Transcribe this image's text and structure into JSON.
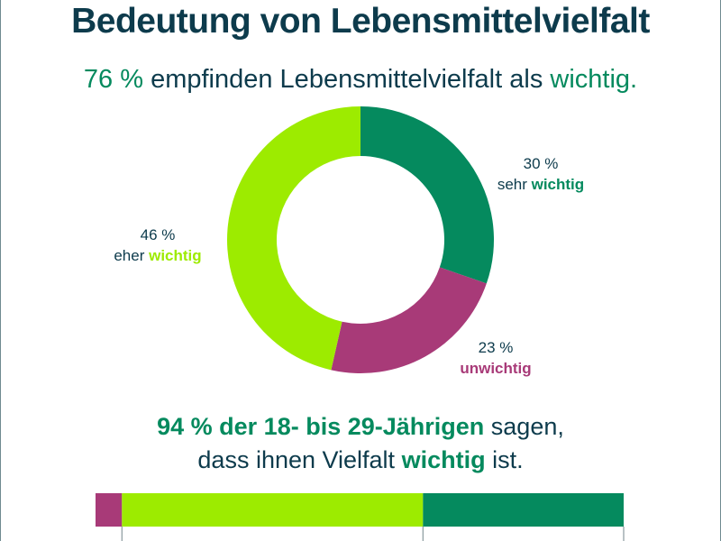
{
  "title": "Bedeutung von Lebensmittelvielfalt",
  "subtitle": {
    "pct": "76 %",
    "text": " empfinden Lebensmittelvielfalt als ",
    "highlight": "wichtig."
  },
  "chart_data": [
    {
      "type": "pie",
      "donut": true,
      "start": "top",
      "direction": "clockwise",
      "slices": [
        {
          "value": 30,
          "pct_label": "30 %",
          "prefix": "sehr ",
          "word": "wichtig",
          "color": "#058a5e",
          "word_color": "#058a5e"
        },
        {
          "value": 23,
          "pct_label": "23 %",
          "prefix": "",
          "word": "unwichtig",
          "color": "#a83a78",
          "word_color": "#a83a78"
        },
        {
          "value": 46,
          "pct_label": "46 %",
          "prefix": "eher ",
          "word": "wichtig",
          "color": "#9deb00",
          "word_color": "#9deb00"
        }
      ]
    },
    {
      "type": "bar",
      "orientation": "horizontal",
      "stacked": true,
      "segments": [
        {
          "value": 5,
          "color": "#a83a78"
        },
        {
          "value": 57,
          "color": "#9deb00"
        },
        {
          "value": 38,
          "color": "#058a5e"
        }
      ]
    }
  ],
  "note": {
    "line1_bold": "94 % der 18- bis 29-Jährigen",
    "line1_rest": " sagen,",
    "line2_a": "dass ihnen Vielfalt ",
    "line2_bold": "wichtig",
    "line2_b": " ist."
  },
  "colors": {
    "text": "#0d3b4c",
    "accent": "#058a5e"
  }
}
